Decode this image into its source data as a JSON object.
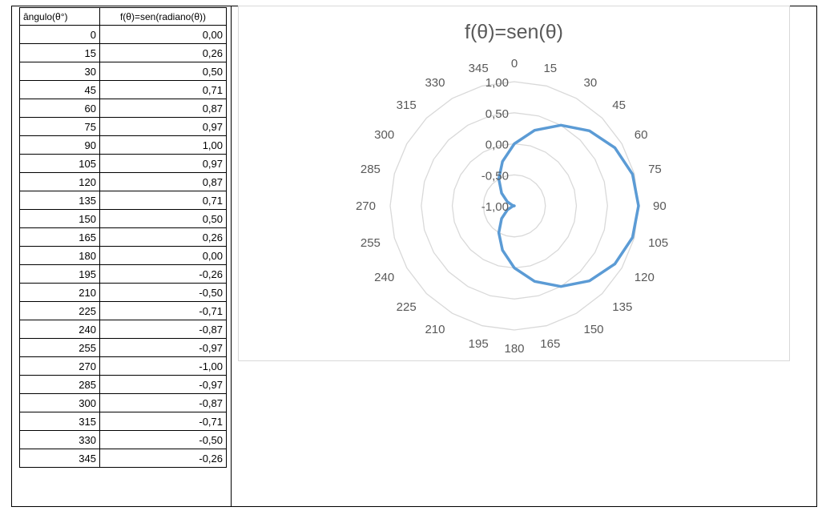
{
  "table": {
    "header": [
      "ângulo(θ°)",
      "f(θ)=sen(radiano(θ))"
    ],
    "rows": [
      [
        "0",
        "0,00"
      ],
      [
        "15",
        "0,26"
      ],
      [
        "30",
        "0,50"
      ],
      [
        "45",
        "0,71"
      ],
      [
        "60",
        "0,87"
      ],
      [
        "75",
        "0,97"
      ],
      [
        "90",
        "1,00"
      ],
      [
        "105",
        "0,97"
      ],
      [
        "120",
        "0,87"
      ],
      [
        "135",
        "0,71"
      ],
      [
        "150",
        "0,50"
      ],
      [
        "165",
        "0,26"
      ],
      [
        "180",
        "0,00"
      ],
      [
        "195",
        "-0,26"
      ],
      [
        "210",
        "-0,50"
      ],
      [
        "225",
        "-0,71"
      ],
      [
        "240",
        "-0,87"
      ],
      [
        "255",
        "-0,97"
      ],
      [
        "270",
        "-1,00"
      ],
      [
        "285",
        "-0,97"
      ],
      [
        "300",
        "-0,87"
      ],
      [
        "315",
        "-0,71"
      ],
      [
        "330",
        "-0,50"
      ],
      [
        "345",
        "-0,26"
      ]
    ]
  },
  "chart_data": {
    "type": "radar",
    "title": "f(θ)=sen(θ)",
    "categories": [
      "0",
      "15",
      "30",
      "45",
      "60",
      "75",
      "90",
      "105",
      "120",
      "135",
      "150",
      "165",
      "180",
      "195",
      "210",
      "225",
      "240",
      "255",
      "270",
      "285",
      "300",
      "315",
      "330",
      "345"
    ],
    "series": [
      {
        "values": [
          0,
          0.26,
          0.5,
          0.71,
          0.87,
          0.97,
          1,
          0.97,
          0.87,
          0.71,
          0.5,
          0.26,
          0,
          -0.26,
          -0.5,
          -0.71,
          -0.87,
          -0.97,
          -1,
          -0.97,
          -0.87,
          -0.71,
          -0.5,
          -0.26
        ],
        "color": "#5b9bd5"
      }
    ],
    "radial_ticks": [
      -1,
      -0.5,
      0,
      0.5,
      1
    ],
    "radial_tick_labels": [
      "-1,00",
      "-0,50",
      "0,00",
      "0,50",
      "1,00"
    ],
    "rlim": [
      -1,
      1
    ],
    "grid": true,
    "legend": "none",
    "grid_color": "#d9d9d9"
  }
}
